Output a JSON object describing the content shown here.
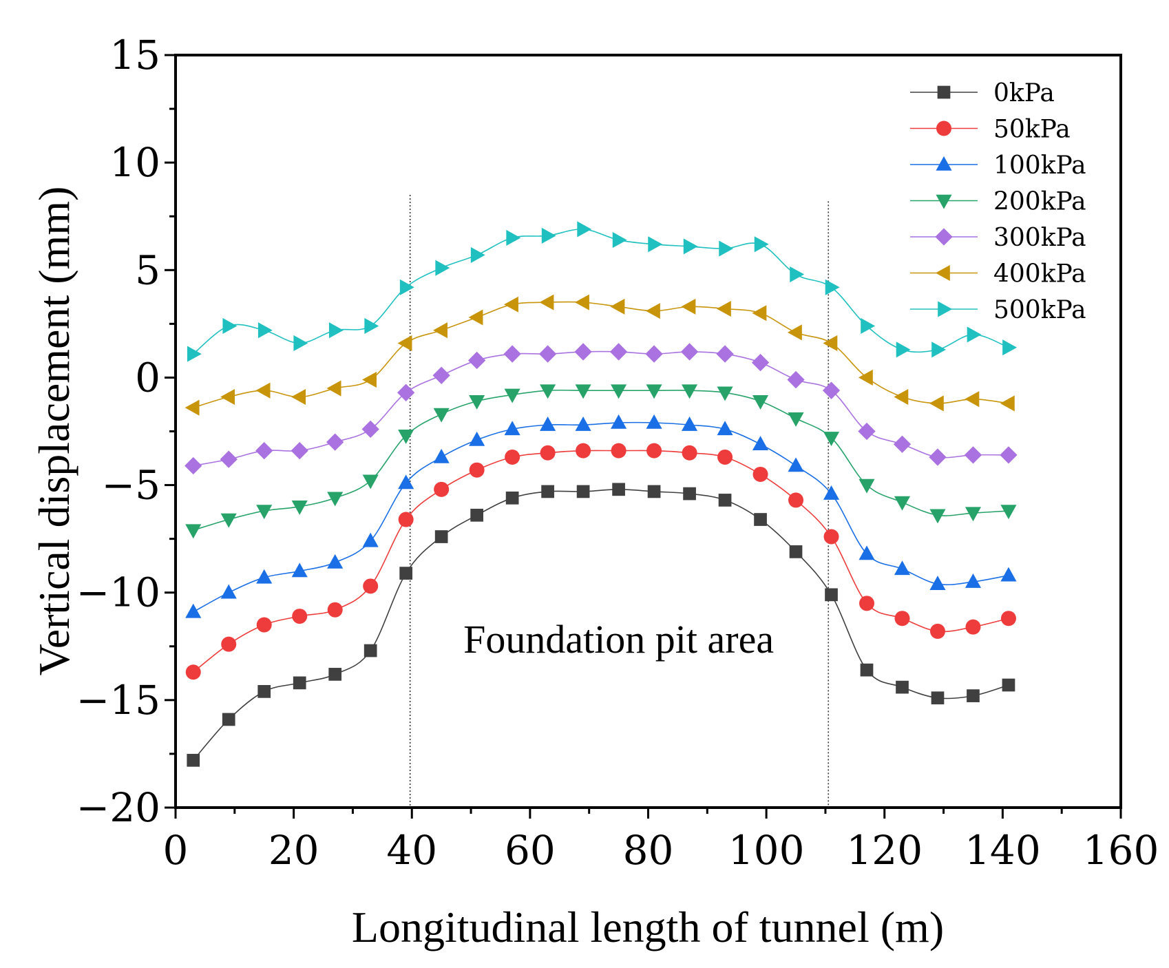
{
  "chart_data": {
    "type": "line",
    "xlabel": "Longitudinal length of tunnel (m)",
    "ylabel": "Vertical displacement (mm)",
    "xlim": [
      0,
      160
    ],
    "ylim": [
      -20,
      15
    ],
    "xticks": [
      0,
      20,
      40,
      60,
      80,
      100,
      120,
      140,
      160
    ],
    "yticks": [
      -20,
      -15,
      -10,
      -5,
      0,
      5,
      10,
      15
    ],
    "xtick_labels": [
      "0",
      "20",
      "40",
      "60",
      "80",
      "100",
      "120",
      "140",
      "160"
    ],
    "ytick_labels": [
      "−20",
      "−15",
      "−10",
      "−5",
      "0",
      "5",
      "10",
      "15"
    ],
    "grid": false,
    "legend_position": "top-right",
    "annotation": {
      "text": "Foundation pit area",
      "x": 75,
      "y": -12.8
    },
    "reference_lines": [
      {
        "x": 39.7,
        "y_top": 8.5
      },
      {
        "x": 110.5,
        "y_top": 8.2
      }
    ],
    "x": [
      3,
      9,
      15,
      21,
      27,
      33,
      39,
      45,
      51,
      57,
      63,
      69,
      75,
      81,
      87,
      93,
      99,
      105,
      111,
      117,
      123,
      129,
      135,
      141
    ],
    "series": [
      {
        "name": "0kPa",
        "color": "#404040",
        "marker": "square",
        "values": [
          -17.8,
          -15.9,
          -14.6,
          -14.2,
          -13.8,
          -12.7,
          -9.1,
          -7.4,
          -6.4,
          -5.6,
          -5.3,
          -5.3,
          -5.2,
          -5.3,
          -5.4,
          -5.7,
          -6.6,
          -8.1,
          -10.1,
          -13.6,
          -14.4,
          -14.9,
          -14.8,
          -14.3
        ]
      },
      {
        "name": "50kPa",
        "color": "#ee3b3b",
        "marker": "circle",
        "values": [
          -13.7,
          -12.4,
          -11.5,
          -11.1,
          -10.8,
          -9.7,
          -6.6,
          -5.2,
          -4.3,
          -3.7,
          -3.5,
          -3.4,
          -3.4,
          -3.4,
          -3.5,
          -3.7,
          -4.5,
          -5.7,
          -7.4,
          -10.5,
          -11.2,
          -11.8,
          -11.6,
          -11.2
        ]
      },
      {
        "name": "100kPa",
        "color": "#1a6fe6",
        "marker": "triangle-up",
        "values": [
          -10.9,
          -10.0,
          -9.3,
          -9.0,
          -8.6,
          -7.6,
          -4.9,
          -3.7,
          -2.9,
          -2.4,
          -2.2,
          -2.2,
          -2.1,
          -2.1,
          -2.2,
          -2.4,
          -3.1,
          -4.1,
          -5.4,
          -8.2,
          -8.9,
          -9.6,
          -9.5,
          -9.2
        ]
      },
      {
        "name": "200kPa",
        "color": "#27a36a",
        "marker": "triangle-down",
        "values": [
          -7.1,
          -6.6,
          -6.2,
          -6.0,
          -5.6,
          -4.8,
          -2.7,
          -1.7,
          -1.1,
          -0.8,
          -0.6,
          -0.6,
          -0.6,
          -0.6,
          -0.6,
          -0.7,
          -1.1,
          -1.9,
          -2.8,
          -5.0,
          -5.8,
          -6.4,
          -6.3,
          -6.2
        ]
      },
      {
        "name": "300kPa",
        "color": "#a972e0",
        "marker": "diamond",
        "values": [
          -4.1,
          -3.8,
          -3.4,
          -3.4,
          -3.0,
          -2.4,
          -0.7,
          0.1,
          0.8,
          1.1,
          1.1,
          1.2,
          1.2,
          1.1,
          1.2,
          1.1,
          0.7,
          -0.1,
          -0.6,
          -2.5,
          -3.1,
          -3.7,
          -3.6,
          -3.6
        ]
      },
      {
        "name": "400kPa",
        "color": "#c8940a",
        "marker": "triangle-left",
        "values": [
          -1.4,
          -0.9,
          -0.6,
          -0.9,
          -0.5,
          -0.1,
          1.6,
          2.2,
          2.8,
          3.4,
          3.5,
          3.5,
          3.3,
          3.1,
          3.3,
          3.2,
          3.0,
          2.1,
          1.6,
          0.0,
          -0.9,
          -1.2,
          -1.0,
          -1.2
        ]
      },
      {
        "name": "500kPa",
        "color": "#20c0c0",
        "marker": "triangle-right",
        "values": [
          1.1,
          2.4,
          2.2,
          1.6,
          2.2,
          2.4,
          4.2,
          5.1,
          5.7,
          6.5,
          6.6,
          6.9,
          6.4,
          6.2,
          6.1,
          6.0,
          6.2,
          4.8,
          4.2,
          2.4,
          1.3,
          1.3,
          2.0,
          1.4
        ]
      }
    ]
  }
}
